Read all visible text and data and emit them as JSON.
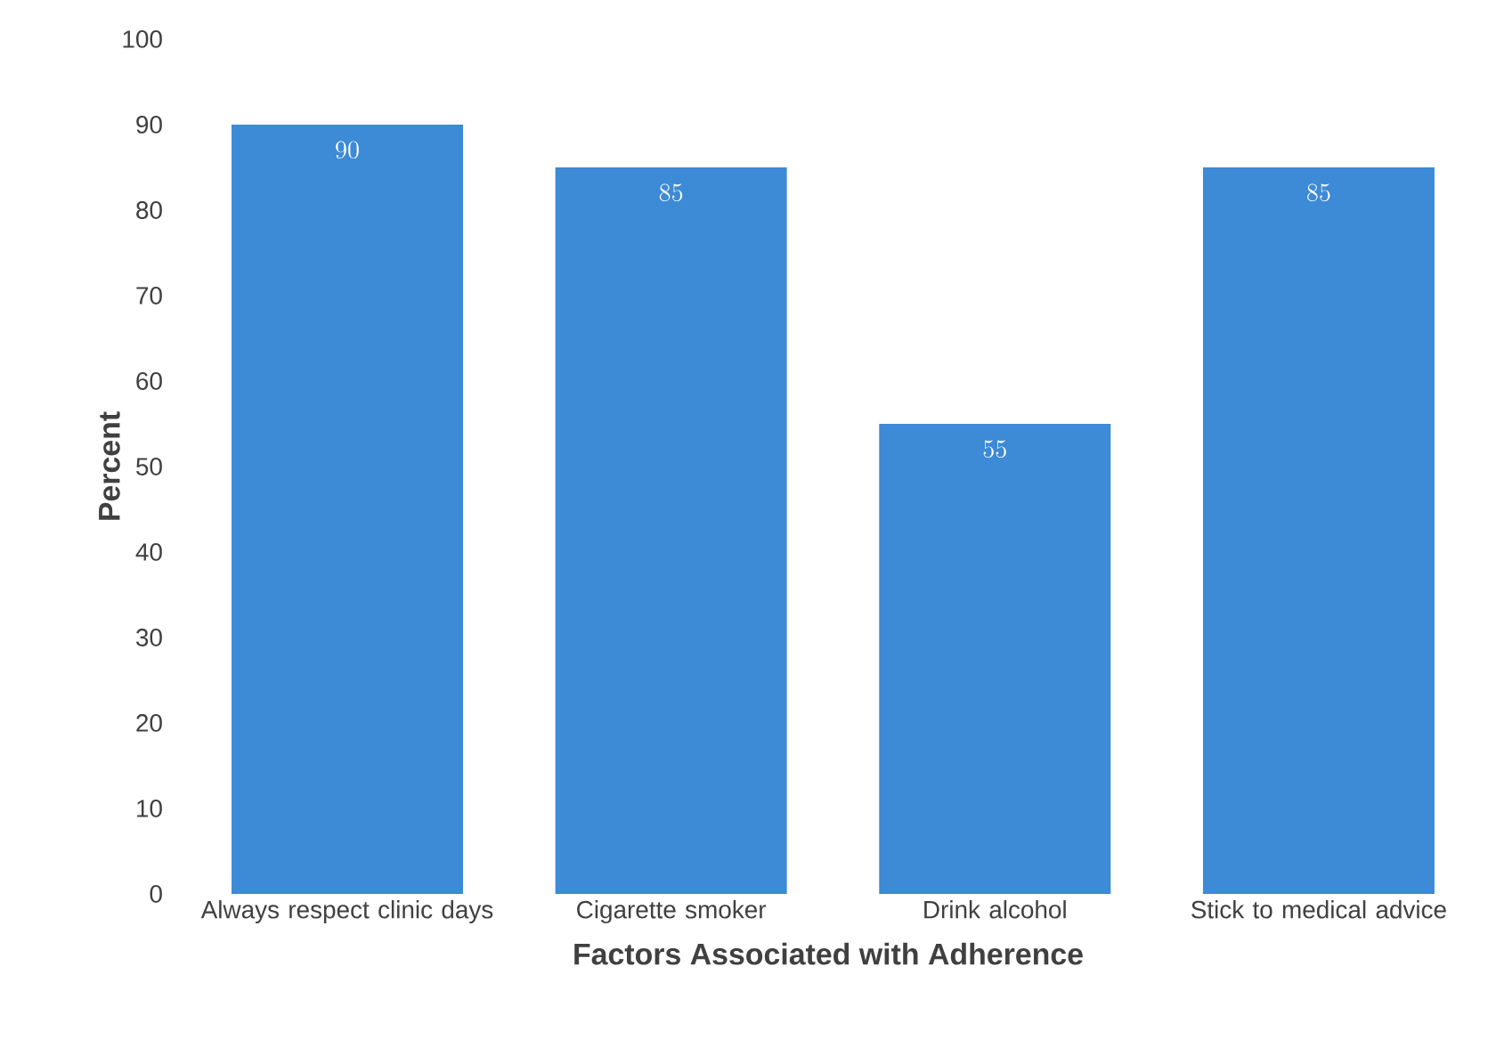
{
  "chart_data": {
    "type": "bar",
    "xlabel": "Factors Associated with Adherence",
    "ylabel": "Percent",
    "categories": [
      "Always respect clinic days",
      "Cigarette smoker",
      "Drink alcohol",
      "Stick to medical advice"
    ],
    "values": [
      90,
      85,
      55,
      85
    ],
    "color": "#3d8ad6",
    "ylim": [
      0,
      100
    ],
    "yticks": [
      0,
      10,
      20,
      30,
      40,
      50,
      60,
      70,
      80,
      90,
      100
    ],
    "data_labels": true
  }
}
